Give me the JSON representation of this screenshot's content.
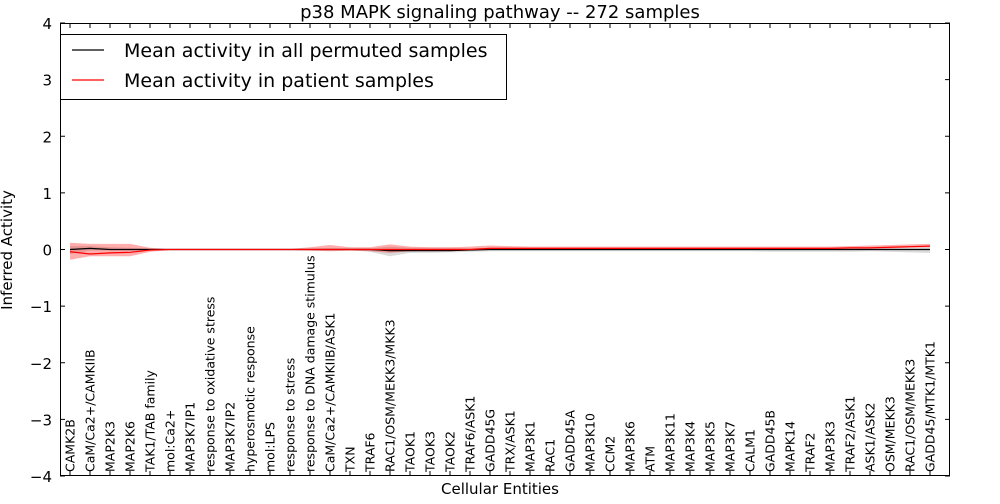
{
  "chart_data": {
    "type": "line",
    "title": "p38 MAPK signaling pathway -- 272 samples",
    "xlabel": "Cellular Entities",
    "ylabel": "Inferred Activity",
    "ylim": [
      -4,
      4
    ],
    "yticks": [
      4,
      3,
      2,
      1,
      0,
      -1,
      -2,
      -3,
      -4
    ],
    "ytick_labels": [
      "4",
      "3",
      "2",
      "1",
      "0",
      "−1",
      "−2",
      "−3",
      "−4"
    ],
    "grid": false,
    "legend_position": "top-left",
    "categories": [
      "CAMK2B",
      "CaM/Ca2+/CAMKIIB",
      "MAP2K3",
      "MAP2K6",
      "TAK1/TAB family",
      "mol:Ca2+",
      "MAP3K7IP1",
      "response to oxidative stress",
      "MAP3K7IP2",
      "hyperosmotic response",
      "mol:LPS",
      "response to stress",
      "response to DNA damage stimulus",
      "CaM/Ca2+/CAMKIIB/ASK1",
      "TXN",
      "TRAF6",
      "RAC1/OSM/MEKK3/MKK3",
      "TAOK1",
      "TAOK3",
      "TAOK2",
      "TRAF6/ASK1",
      "GADD45G",
      "TRX/ASK1",
      "MAP3K1",
      "RAC1",
      "GADD45A",
      "MAP3K10",
      "CCM2",
      "MAP3K6",
      "ATM",
      "MAP3K11",
      "MAP3K4",
      "MAP3K5",
      "MAP3K7",
      "CALM1",
      "GADD45B",
      "MAPK14",
      "TRAF2",
      "MAP3K3",
      "TRAF2/ASK1",
      "ASK1/ASK2",
      "OSM/MEKK3",
      "RAC1/OSM/MEKK3",
      "GADD45/MTK1/MTK1"
    ],
    "series": [
      {
        "name": "Mean activity in all permuted samples",
        "color": "#000000",
        "values": [
          0.0,
          0.02,
          0.0,
          0.0,
          0.0,
          0.0,
          0.0,
          0.0,
          0.0,
          0.0,
          0.0,
          0.0,
          0.0,
          0.0,
          0.0,
          0.0,
          -0.02,
          -0.02,
          -0.02,
          -0.02,
          -0.01,
          0.0,
          0.0,
          0.0,
          0.0,
          0.0,
          0.0,
          0.0,
          0.0,
          0.0,
          0.0,
          0.0,
          0.0,
          0.0,
          0.0,
          0.0,
          0.0,
          0.0,
          0.0,
          0.0,
          0.0,
          0.0,
          0.0,
          0.0
        ],
        "band_lower": [
          -0.08,
          -0.02,
          -0.02,
          -0.02,
          -0.01,
          -0.01,
          -0.01,
          -0.01,
          -0.01,
          -0.01,
          -0.01,
          -0.01,
          -0.01,
          -0.01,
          -0.01,
          -0.04,
          -0.12,
          -0.06,
          -0.06,
          -0.05,
          -0.04,
          -0.03,
          -0.03,
          -0.03,
          -0.03,
          -0.03,
          -0.03,
          -0.03,
          -0.03,
          -0.03,
          -0.03,
          -0.03,
          -0.03,
          -0.03,
          -0.03,
          -0.04,
          -0.04,
          -0.04,
          -0.04,
          -0.04,
          -0.03,
          -0.04,
          -0.05,
          -0.06
        ],
        "band_upper": [
          0.06,
          0.06,
          0.04,
          0.03,
          0.02,
          0.01,
          0.01,
          0.01,
          0.01,
          0.01,
          0.01,
          0.01,
          0.01,
          0.02,
          0.02,
          0.02,
          0.05,
          0.03,
          0.03,
          0.03,
          0.02,
          0.03,
          0.03,
          0.03,
          0.03,
          0.03,
          0.03,
          0.03,
          0.03,
          0.03,
          0.03,
          0.03,
          0.03,
          0.03,
          0.03,
          0.03,
          0.03,
          0.03,
          0.03,
          0.03,
          0.03,
          0.03,
          0.03,
          0.04
        ]
      },
      {
        "name": "Mean activity in patient samples",
        "color": "#ff0000",
        "values": [
          -0.04,
          -0.08,
          -0.06,
          -0.05,
          -0.01,
          0.0,
          0.0,
          0.0,
          0.0,
          0.0,
          0.0,
          0.0,
          0.0,
          0.0,
          0.0,
          0.0,
          0.0,
          0.0,
          0.0,
          0.0,
          0.0,
          0.02,
          0.02,
          0.02,
          0.02,
          0.02,
          0.02,
          0.02,
          0.02,
          0.02,
          0.02,
          0.02,
          0.02,
          0.02,
          0.02,
          0.02,
          0.02,
          0.02,
          0.02,
          0.03,
          0.03,
          0.04,
          0.05,
          0.06
        ],
        "band_lower": [
          -0.18,
          -0.12,
          -0.12,
          -0.12,
          -0.04,
          -0.01,
          -0.01,
          -0.01,
          -0.01,
          -0.01,
          -0.01,
          -0.01,
          -0.02,
          -0.03,
          -0.02,
          -0.03,
          -0.06,
          -0.03,
          -0.02,
          -0.02,
          -0.01,
          0.0,
          0.0,
          0.0,
          0.0,
          0.0,
          0.0,
          0.0,
          0.0,
          0.0,
          0.0,
          0.0,
          0.0,
          0.0,
          0.0,
          0.0,
          0.0,
          0.0,
          0.0,
          0.0,
          0.01,
          0.02,
          0.03,
          0.04
        ],
        "band_upper": [
          0.12,
          0.1,
          0.1,
          0.1,
          0.03,
          0.01,
          0.01,
          0.01,
          0.01,
          0.01,
          0.01,
          0.01,
          0.04,
          0.08,
          0.04,
          0.04,
          0.09,
          0.05,
          0.04,
          0.04,
          0.05,
          0.07,
          0.06,
          0.05,
          0.05,
          0.05,
          0.05,
          0.05,
          0.05,
          0.05,
          0.05,
          0.05,
          0.05,
          0.05,
          0.05,
          0.05,
          0.05,
          0.05,
          0.05,
          0.06,
          0.07,
          0.08,
          0.09,
          0.1
        ]
      }
    ]
  }
}
